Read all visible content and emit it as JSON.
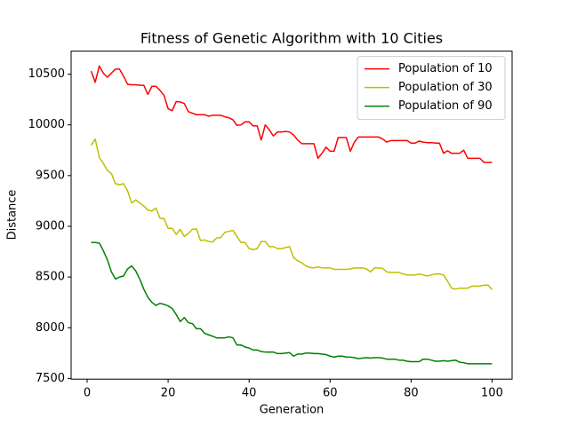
{
  "chart_data": {
    "type": "line",
    "title": "Fitness of Genetic Algorithm with 10 Cities",
    "xlabel": "Generation",
    "ylabel": "Distance",
    "x": [
      1,
      2,
      3,
      4,
      5,
      6,
      7,
      8,
      9,
      10,
      11,
      12,
      13,
      14,
      15,
      16,
      17,
      18,
      19,
      20,
      21,
      22,
      23,
      24,
      25,
      26,
      27,
      28,
      29,
      30,
      31,
      32,
      33,
      34,
      35,
      36,
      37,
      38,
      39,
      40,
      41,
      42,
      43,
      44,
      45,
      46,
      47,
      48,
      49,
      50,
      51,
      52,
      53,
      54,
      55,
      56,
      57,
      58,
      59,
      60,
      61,
      62,
      63,
      64,
      65,
      66,
      67,
      68,
      69,
      70,
      71,
      72,
      73,
      74,
      75,
      76,
      77,
      78,
      79,
      80,
      81,
      82,
      83,
      84,
      85,
      86,
      87,
      88,
      89,
      90,
      91,
      92,
      93,
      94,
      95,
      96,
      97,
      98,
      99,
      100
    ],
    "series": [
      {
        "name": "Population of 10",
        "color": "#ff0000",
        "values": [
          10530,
          10420,
          10580,
          10510,
          10470,
          10510,
          10550,
          10550,
          10480,
          10400,
          10395,
          10395,
          10390,
          10390,
          10300,
          10380,
          10380,
          10340,
          10290,
          10160,
          10140,
          10230,
          10225,
          10210,
          10130,
          10115,
          10100,
          10100,
          10100,
          10085,
          10095,
          10095,
          10095,
          10080,
          10070,
          10050,
          9995,
          10000,
          10030,
          10030,
          9990,
          9990,
          9850,
          10000,
          9950,
          9890,
          9930,
          9930,
          9935,
          9930,
          9900,
          9850,
          9815,
          9815,
          9815,
          9815,
          9670,
          9720,
          9780,
          9740,
          9740,
          9875,
          9875,
          9875,
          9740,
          9830,
          9880,
          9880,
          9880,
          9880,
          9880,
          9880,
          9860,
          9830,
          9845,
          9845,
          9845,
          9845,
          9845,
          9820,
          9820,
          9840,
          9830,
          9825,
          9825,
          9820,
          9820,
          9720,
          9745,
          9720,
          9720,
          9720,
          9750,
          9670,
          9670,
          9670,
          9670,
          9630,
          9630,
          9630
        ]
      },
      {
        "name": "Population of 30",
        "color": "#bfbf00",
        "values": [
          9800,
          9860,
          9680,
          9620,
          9550,
          9520,
          9420,
          9410,
          9420,
          9350,
          9230,
          9260,
          9230,
          9200,
          9160,
          9150,
          9180,
          9080,
          9075,
          8980,
          8980,
          8920,
          8970,
          8900,
          8930,
          8970,
          8975,
          8860,
          8865,
          8850,
          8845,
          8885,
          8890,
          8940,
          8950,
          8960,
          8900,
          8840,
          8840,
          8780,
          8770,
          8780,
          8850,
          8850,
          8800,
          8800,
          8780,
          8780,
          8790,
          8800,
          8690,
          8660,
          8640,
          8610,
          8595,
          8590,
          8600,
          8590,
          8590,
          8590,
          8575,
          8575,
          8575,
          8575,
          8580,
          8590,
          8590,
          8590,
          8580,
          8550,
          8590,
          8590,
          8585,
          8550,
          8545,
          8545,
          8545,
          8530,
          8520,
          8520,
          8520,
          8530,
          8520,
          8510,
          8520,
          8530,
          8530,
          8520,
          8460,
          8390,
          8380,
          8390,
          8390,
          8390,
          8410,
          8410,
          8410,
          8420,
          8420,
          8375
        ]
      },
      {
        "name": "Population of 90",
        "color": "#008000",
        "values": [
          8840,
          8840,
          8835,
          8760,
          8670,
          8550,
          8480,
          8500,
          8510,
          8580,
          8610,
          8560,
          8480,
          8380,
          8300,
          8250,
          8220,
          8240,
          8230,
          8215,
          8190,
          8130,
          8060,
          8100,
          8050,
          8040,
          7990,
          7990,
          7945,
          7930,
          7915,
          7900,
          7900,
          7900,
          7910,
          7900,
          7830,
          7830,
          7810,
          7800,
          7780,
          7780,
          7765,
          7760,
          7760,
          7760,
          7745,
          7745,
          7750,
          7755,
          7720,
          7740,
          7740,
          7750,
          7750,
          7745,
          7745,
          7740,
          7735,
          7720,
          7710,
          7720,
          7720,
          7710,
          7710,
          7705,
          7695,
          7700,
          7705,
          7700,
          7705,
          7705,
          7700,
          7690,
          7690,
          7690,
          7680,
          7680,
          7670,
          7665,
          7665,
          7665,
          7690,
          7690,
          7680,
          7670,
          7670,
          7675,
          7670,
          7675,
          7680,
          7660,
          7655,
          7645,
          7645,
          7645,
          7645,
          7645,
          7645,
          7645
        ]
      }
    ],
    "xlim": [
      -3.95,
      104.95
    ],
    "ylim": [
      7493,
      10727
    ],
    "xticks": [
      0,
      20,
      40,
      60,
      80,
      100
    ],
    "yticks": [
      7500,
      8000,
      8500,
      9000,
      9500,
      10000,
      10500
    ],
    "legend": "upper right",
    "grid": false
  }
}
